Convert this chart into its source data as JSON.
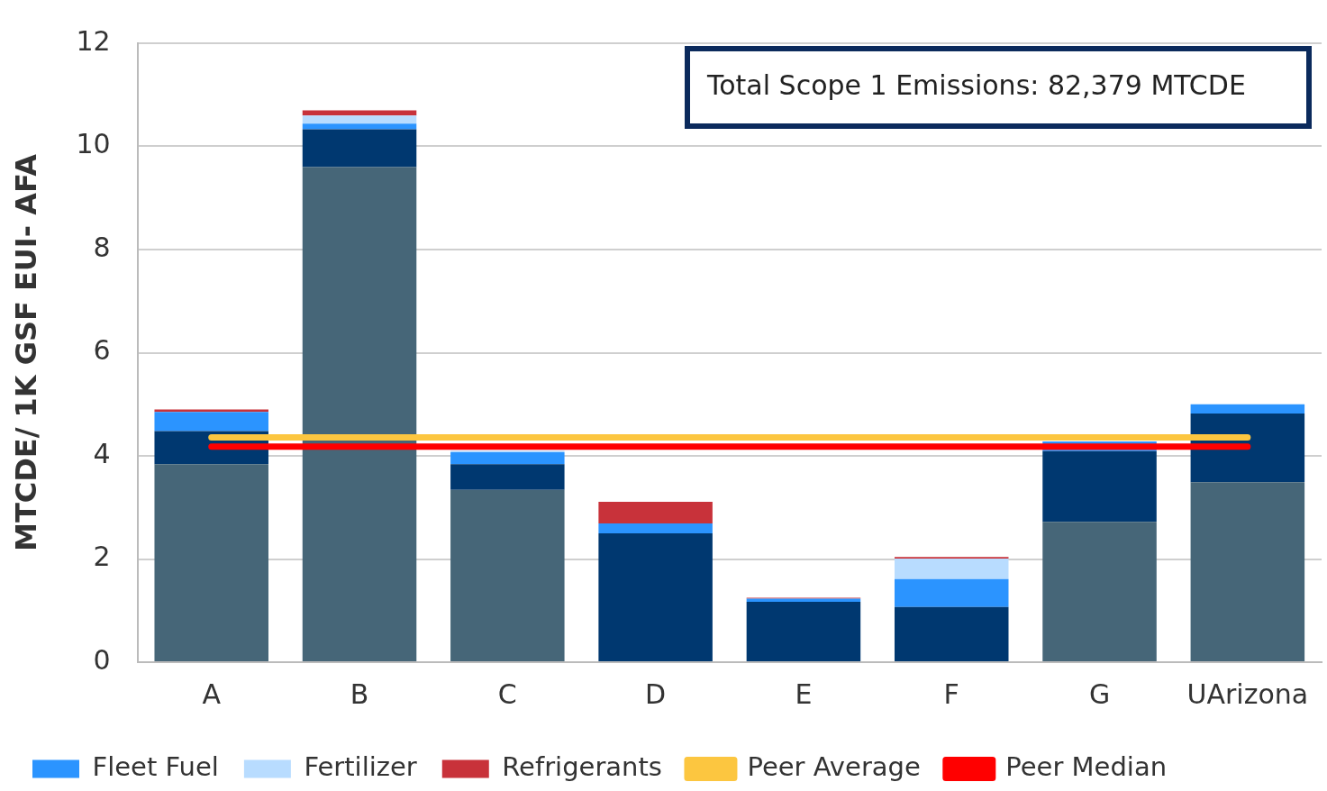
{
  "chart_data": {
    "type": "bar",
    "stacked": true,
    "ylabel": "MTCDE/ 1K GSF EUI- AFA",
    "categories": [
      "A",
      "B",
      "C",
      "D",
      "E",
      "F",
      "G",
      "UArizona"
    ],
    "series": [
      {
        "color": "#466678",
        "values": [
          3.84,
          9.6,
          3.34,
          0,
          0,
          0,
          2.72,
          3.49
        ]
      },
      {
        "color": "#003870",
        "values": [
          0.64,
          0.73,
          0.5,
          2.5,
          1.17,
          1.07,
          1.37,
          1.33
        ]
      },
      {
        "name": "Fleet Fuel",
        "color": "#2b94ff",
        "values": [
          0.37,
          0.11,
          0.23,
          0.19,
          0.06,
          0.54,
          0.19,
          0.18
        ]
      },
      {
        "name": "Fertilizer",
        "color": "#b8dcff",
        "values": [
          0,
          0.16,
          0.03,
          0,
          0,
          0.4,
          0,
          0
        ]
      },
      {
        "name": "Refrigerants",
        "color": "#c8323a",
        "values": [
          0.05,
          0.1,
          0,
          0.42,
          0.02,
          0.03,
          0,
          0
        ]
      },
      {
        "name": "Peer Average",
        "type": "line",
        "color": "#fcc640",
        "values": [
          4.36,
          4.36,
          4.36,
          4.36,
          4.36,
          4.36,
          4.36,
          4.36
        ]
      },
      {
        "name": "Peer Median",
        "type": "line",
        "color": "#ff0000",
        "values": [
          4.18,
          4.18,
          4.18,
          4.18,
          4.18,
          4.18,
          4.18,
          4.18
        ]
      }
    ],
    "ylim": [
      0,
      12
    ],
    "yticks": [
      0,
      2,
      4,
      6,
      8,
      10,
      12
    ],
    "grid": "y",
    "legend": "bottom",
    "marker": "none",
    "annotations": [
      "Total Scope 1 Emissions: 82,379 MTCDE"
    ]
  }
}
